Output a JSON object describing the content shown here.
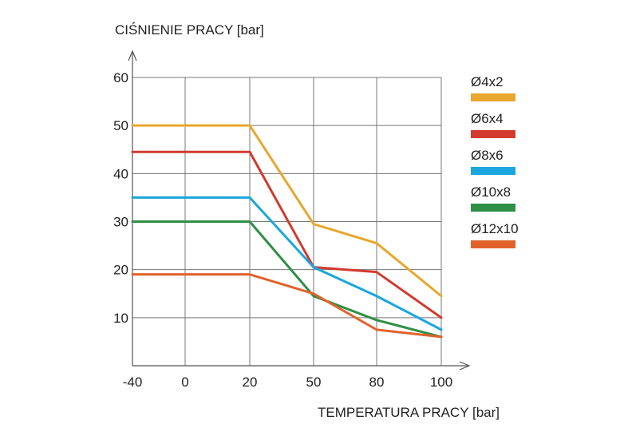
{
  "chart_data": {
    "type": "line",
    "title": "",
    "ylabel": "CIŚNIENIE PRACY [bar]",
    "xlabel": "TEMPERATURA PRACY [bar]",
    "x_categories": [
      "-40",
      "0",
      "20",
      "50",
      "80",
      "100"
    ],
    "yticks": [
      "10",
      "20",
      "30",
      "40",
      "50",
      "60"
    ],
    "ylim": [
      0,
      60
    ],
    "grid": true,
    "legend_position": "right",
    "series": [
      {
        "name": "Ø4x2",
        "color": "#E8A72E",
        "values": [
          50,
          50,
          50,
          29.5,
          25.5,
          14.5
        ]
      },
      {
        "name": "Ø6x4",
        "color": "#D23A2E",
        "values": [
          44.5,
          44.5,
          44.5,
          20.5,
          19.5,
          10
        ]
      },
      {
        "name": "Ø8x6",
        "color": "#1BA6DE",
        "values": [
          35,
          35,
          35,
          20.5,
          14.5,
          7.5
        ]
      },
      {
        "name": "Ø10x8",
        "color": "#2E8F45",
        "values": [
          30,
          30,
          30,
          14.5,
          9.5,
          6
        ]
      },
      {
        "name": "Ø12x10",
        "color": "#E2622C",
        "values": [
          19,
          19,
          19,
          15,
          7.5,
          6
        ]
      }
    ]
  }
}
